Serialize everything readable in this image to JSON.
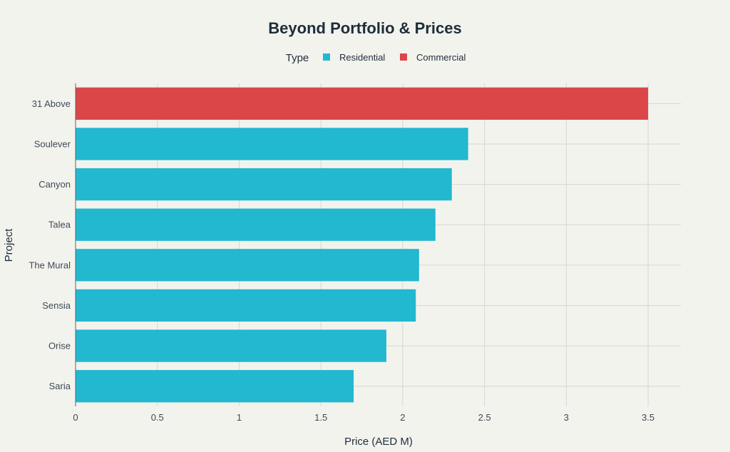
{
  "chart_data": {
    "type": "bar",
    "orientation": "horizontal",
    "title": "Beyond Portfolio & Prices",
    "xlabel": "Price (AED M)",
    "ylabel": "Project",
    "xlim": [
      0,
      3.7
    ],
    "xticks": [
      0,
      0.5,
      1,
      1.5,
      2,
      2.5,
      3,
      3.5
    ],
    "xtick_labels": [
      "0",
      "0.5",
      "1",
      "1.5",
      "2",
      "2.5",
      "3",
      "3.5"
    ],
    "grid": true,
    "legend": {
      "title": "Type",
      "position": "top-center",
      "entries": [
        {
          "name": "Residential",
          "color": "#22b8cf"
        },
        {
          "name": "Commercial",
          "color": "#db4648"
        }
      ]
    },
    "categories": [
      "31 Above",
      "Soulever",
      "Canyon",
      "Talea",
      "The Mural",
      "Sensia",
      "Orise",
      "Saria"
    ],
    "values": [
      3.5,
      2.4,
      2.3,
      2.2,
      2.1,
      2.08,
      1.9,
      1.7
    ],
    "types": [
      "Commercial",
      "Residential",
      "Residential",
      "Residential",
      "Residential",
      "Residential",
      "Residential",
      "Residential"
    ]
  }
}
